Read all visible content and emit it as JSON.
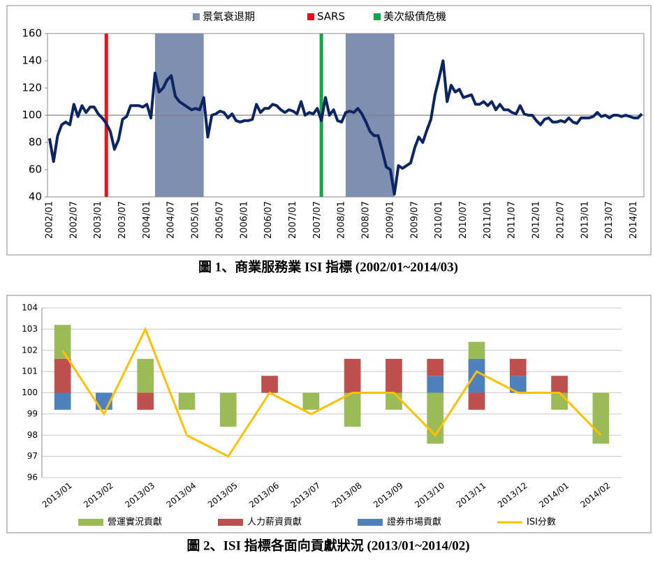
{
  "chart_data": [
    {
      "type": "line",
      "caption": "圖 1、商業服務業 ISI 指標 (2002/01~2014/03)",
      "categories": [
        "2002/01",
        null,
        null,
        null,
        null,
        null,
        "2002/07",
        null,
        null,
        null,
        null,
        null,
        "2003/01",
        null,
        null,
        null,
        null,
        null,
        "2003/07",
        null,
        null,
        null,
        null,
        null,
        "2004/01",
        null,
        null,
        null,
        null,
        null,
        "2004/07",
        null,
        null,
        null,
        null,
        null,
        "2005/01",
        null,
        null,
        null,
        null,
        null,
        "2005/07",
        null,
        null,
        null,
        null,
        null,
        "2006/01",
        null,
        null,
        null,
        null,
        null,
        "2006/07",
        null,
        null,
        null,
        null,
        null,
        "2007/01",
        null,
        null,
        null,
        null,
        null,
        "2007/07",
        null,
        null,
        null,
        null,
        null,
        "2008/01",
        null,
        null,
        null,
        null,
        null,
        "2008/07",
        null,
        null,
        null,
        null,
        null,
        "2009/01",
        null,
        null,
        null,
        null,
        null,
        "2009/07",
        null,
        null,
        null,
        null,
        null,
        "2010/01",
        null,
        null,
        null,
        null,
        null,
        "2010/07",
        null,
        null,
        null,
        null,
        null,
        "2011/01",
        null,
        null,
        null,
        null,
        null,
        "2011/07",
        null,
        null,
        null,
        null,
        null,
        "2012/01",
        null,
        null,
        null,
        null,
        null,
        "2012/07",
        null,
        null,
        null,
        null,
        null,
        "2013/01",
        null,
        null,
        null,
        null,
        null,
        "2013/07",
        null,
        null,
        null,
        null,
        null,
        "2014/01",
        null,
        null
      ],
      "series": [
        {
          "color": "#0d2463",
          "values": [
            83,
            66,
            85,
            93,
            95,
            93,
            108,
            99,
            107,
            102,
            106,
            106,
            101,
            98,
            94,
            88,
            75,
            82,
            97,
            99,
            107,
            107,
            107,
            106,
            108,
            98,
            131,
            117,
            120,
            126,
            129,
            114,
            110,
            108,
            106,
            104,
            105,
            104,
            113,
            84,
            100,
            101,
            103,
            102,
            98,
            101,
            96,
            95,
            96,
            96,
            97,
            108,
            102,
            105,
            105,
            108,
            107,
            104,
            102,
            104,
            103,
            101,
            110,
            100,
            102,
            101,
            105,
            96,
            113,
            100,
            104,
            96,
            95,
            102,
            103,
            102,
            105,
            101,
            95,
            88,
            85,
            85,
            74,
            62,
            60,
            42,
            63,
            61,
            63,
            65,
            76,
            84,
            80,
            89,
            97,
            115,
            127,
            140,
            110,
            122,
            117,
            119,
            113,
            114,
            115,
            108,
            108,
            110,
            107,
            110,
            104,
            108,
            104,
            104,
            102,
            101,
            107,
            101,
            100,
            100,
            96,
            93,
            97,
            98,
            95,
            95,
            96,
            95,
            98,
            95,
            94,
            98,
            98,
            98,
            99,
            102,
            99,
            100,
            98,
            100,
            100,
            99,
            100,
            99,
            98,
            98,
            101
          ]
        }
      ],
      "band_legend": "景氣衰退期",
      "band_color": "#7f8fb1",
      "bands": [
        [
          26,
          38
        ],
        [
          73,
          85
        ]
      ],
      "events": [
        {
          "name": "SARS",
          "color": "#e5131b",
          "at": 14
        },
        {
          "name": "美次級債危機",
          "color": "#12a54b",
          "at": 67
        }
      ],
      "hline": 100,
      "ylim": [
        40,
        160
      ],
      "yticks": [
        40,
        60,
        80,
        100,
        120,
        140,
        160
      ]
    },
    {
      "type": "bar",
      "caption": "圖 2、ISI 指標各面向貢獻狀況 (2013/01~2014/02)",
      "categories": [
        "2013/01",
        "2013/02",
        "2013/03",
        "2013/04",
        "2013/05",
        "2013/06",
        "2013/07",
        "2013/08",
        "2013/09",
        "2013/10",
        "2013/11",
        "2013/12",
        "2014/01",
        "2014/02"
      ],
      "baseline": 100,
      "series": [
        {
          "name": "證券市場貢獻",
          "color": "#4f81bd",
          "values": [
            -0.8,
            -0.8,
            0,
            0,
            0,
            0,
            0,
            0,
            0,
            0.8,
            1.6,
            0.8,
            0,
            0
          ]
        },
        {
          "name": "人力薪資貢獻",
          "color": "#c0504d",
          "values": [
            1.6,
            0,
            -0.8,
            0,
            0,
            0.8,
            0,
            1.6,
            1.6,
            0.8,
            -0.8,
            0.8,
            0.8,
            0
          ]
        },
        {
          "name": "營運實況貢獻",
          "color": "#9bbb59",
          "values": [
            1.6,
            0,
            1.6,
            -0.8,
            -1.6,
            0,
            -0.8,
            -1.6,
            -0.8,
            -2.4,
            0.8,
            0,
            -0.8,
            -2.4
          ]
        },
        {
          "name": "ISI分數",
          "type": "line",
          "color": "#ffc000",
          "values": [
            102,
            99,
            103,
            98,
            97,
            100,
            99,
            100,
            100,
            98,
            101,
            100,
            100,
            98
          ]
        }
      ],
      "legend_order": [
        2,
        1,
        0,
        3
      ],
      "grid": true,
      "ylim": [
        96,
        104
      ],
      "yticks": [
        96,
        97,
        98,
        99,
        100,
        101,
        102,
        103,
        104
      ]
    }
  ]
}
